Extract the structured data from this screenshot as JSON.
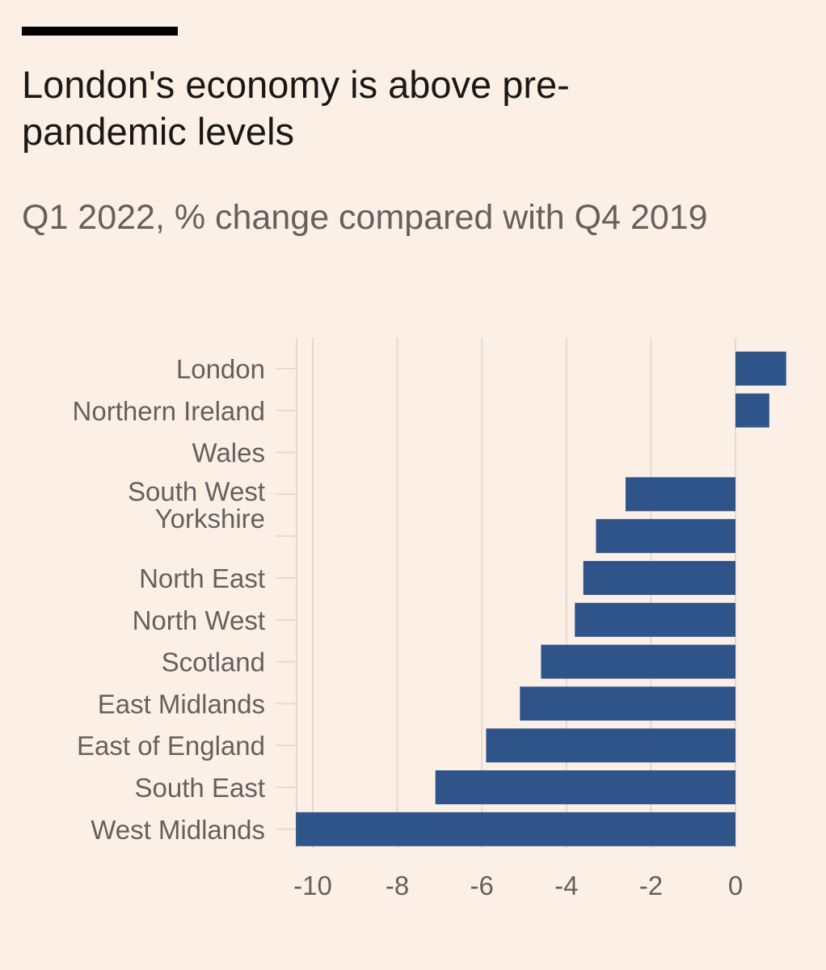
{
  "header": {
    "title": "London's economy is above pre-pandemic levels",
    "subtitle": "Q1 2022, % change compared with Q4 2019"
  },
  "colors": {
    "background": "#fcf0e6",
    "bar": "#2f5489",
    "text": "#66605c",
    "title": "#1a1817",
    "grid": "#e3dad2"
  },
  "chart_data": {
    "type": "bar",
    "orientation": "horizontal",
    "title": "London's economy is above pre-pandemic levels",
    "subtitle": "Q1 2022, % change compared with Q4 2019",
    "categories": [
      "London",
      "Northern Ireland",
      "Wales",
      "South West",
      "Yorkshire",
      "North East",
      "North West",
      "Scotland",
      "East Midlands",
      "East of England",
      "South East",
      "West Midlands"
    ],
    "values": [
      1.2,
      0.8,
      0,
      -2.6,
      -3.3,
      -3.6,
      -3.8,
      -4.6,
      -5.1,
      -5.9,
      -7.1,
      -10.4
    ],
    "xlim": [
      -10.5,
      1.5
    ],
    "xticks": [
      -10,
      -8,
      -6,
      -4,
      -2,
      0
    ],
    "xtick_labels": [
      "-10",
      "-8",
      "-6",
      "-4",
      "-2",
      "0"
    ],
    "grid": true,
    "legend": "none"
  }
}
